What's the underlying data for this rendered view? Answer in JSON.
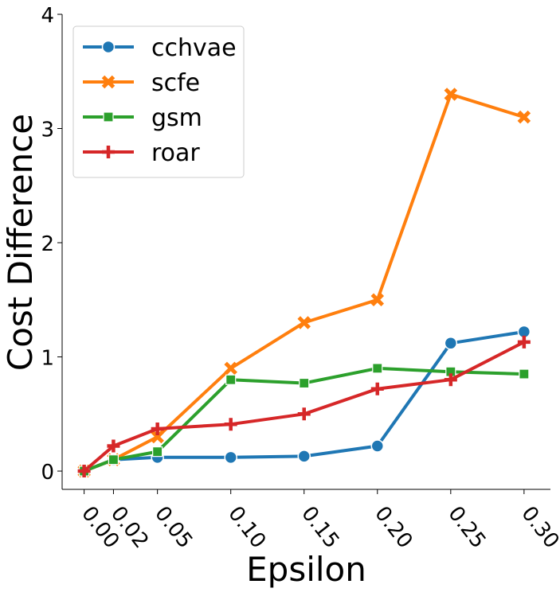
{
  "chart_data": {
    "type": "line",
    "xlabel": "Epsilon",
    "ylabel": "Cost Difference",
    "x": [
      0.0,
      0.02,
      0.05,
      0.1,
      0.15,
      0.2,
      0.25,
      0.3
    ],
    "xtick_labels": [
      "0.00",
      "0.02",
      "0.05",
      "0.10",
      "0.15",
      "0.20",
      "0.25",
      "0.30"
    ],
    "yticks": [
      0,
      1,
      2,
      3,
      4
    ],
    "ytick_labels": [
      "0",
      "1",
      "2",
      "3",
      "4"
    ],
    "xlim": [
      -0.015,
      0.318
    ],
    "ylim": [
      -0.16,
      4.0
    ],
    "grid": false,
    "legend": "top-left",
    "series": [
      {
        "name": "cchvae",
        "color": "#1f77b4",
        "marker": "circle",
        "values": [
          0.0,
          0.1,
          0.12,
          0.12,
          0.13,
          0.22,
          1.12,
          1.22
        ]
      },
      {
        "name": "scfe",
        "color": "#ff7f0e",
        "marker": "x",
        "values": [
          0.0,
          0.1,
          0.3,
          0.9,
          1.3,
          1.5,
          3.3,
          3.1
        ]
      },
      {
        "name": "gsm",
        "color": "#2ca02c",
        "marker": "square",
        "values": [
          0.0,
          0.1,
          0.17,
          0.8,
          0.77,
          0.9,
          0.87,
          0.85
        ]
      },
      {
        "name": "roar",
        "color": "#d62728",
        "marker": "plus",
        "values": [
          0.0,
          0.22,
          0.37,
          0.41,
          0.5,
          0.72,
          0.8,
          1.13
        ]
      }
    ]
  }
}
